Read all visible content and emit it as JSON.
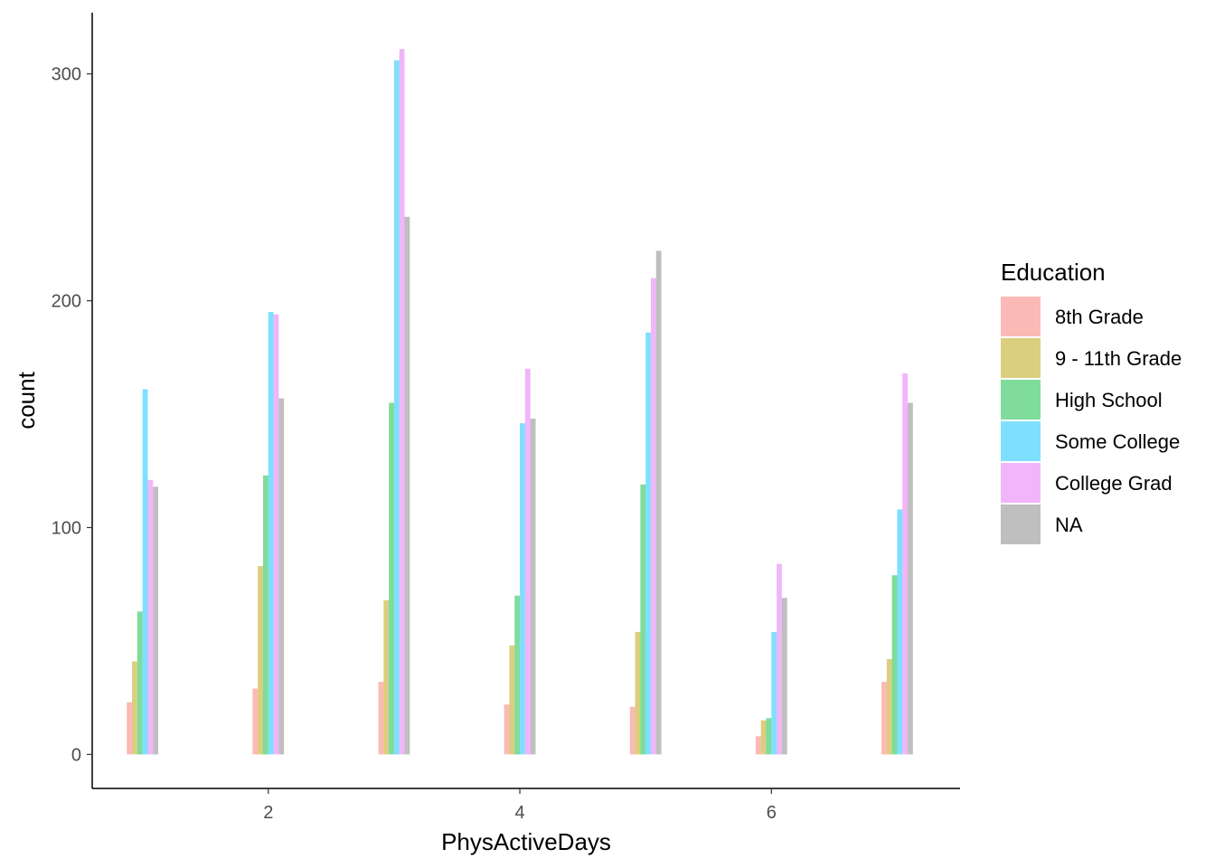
{
  "chart_data": {
    "type": "bar",
    "xlabel": "PhysActiveDays",
    "ylabel": "count",
    "x_ticks": [
      2,
      4,
      6
    ],
    "y_ticks": [
      0,
      100,
      200,
      300
    ],
    "xlim": [
      0.6,
      7.5
    ],
    "ylim": [
      -15,
      327
    ],
    "x": [
      1,
      2,
      3,
      4,
      5,
      6,
      7
    ],
    "bar_opacity": 0.5,
    "legend": {
      "title": "Education",
      "position": "right"
    },
    "series": [
      {
        "name": "8th Grade",
        "color": "#F8766D",
        "values": [
          23,
          29,
          32,
          22,
          21,
          8,
          32
        ]
      },
      {
        "name": "9 - 11th Grade",
        "color": "#B79F00",
        "values": [
          41,
          83,
          68,
          48,
          54,
          15,
          42
        ]
      },
      {
        "name": "High School",
        "color": "#00BA38",
        "values": [
          63,
          123,
          155,
          70,
          119,
          16,
          79
        ]
      },
      {
        "name": "Some College",
        "color": "#00BFFF",
        "values": [
          161,
          195,
          306,
          146,
          186,
          54,
          108
        ]
      },
      {
        "name": "College Grad",
        "color": "#E36EF6",
        "values": [
          121,
          194,
          311,
          170,
          210,
          84,
          168
        ]
      },
      {
        "name": "NA",
        "color": "#7F7F7F",
        "values": [
          118,
          157,
          237,
          148,
          222,
          69,
          155
        ]
      }
    ]
  }
}
